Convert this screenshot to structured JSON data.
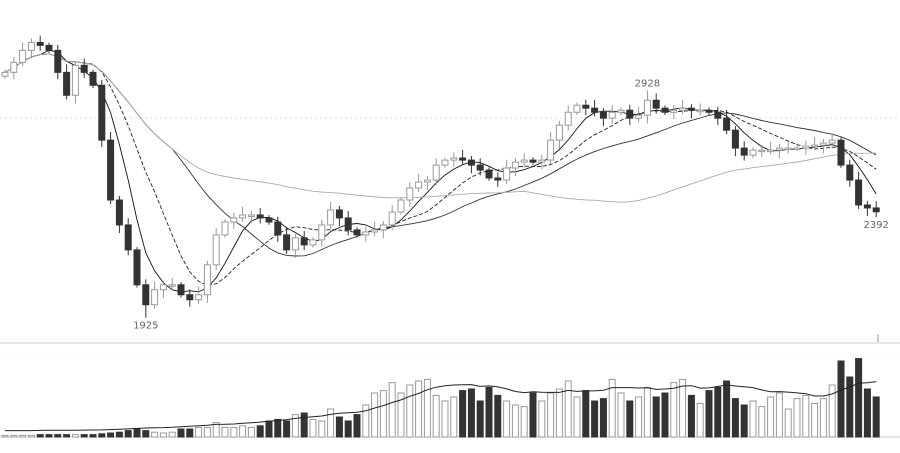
{
  "chart_data": {
    "type": "candlestick",
    "title": "",
    "xlabel": "",
    "ylabel": "",
    "ylim": [
      1800,
      3260
    ],
    "grid": false,
    "colors": {
      "up": "#999999",
      "down": "#333333",
      "ma": [
        "#111111",
        "#222222",
        "#333333",
        "#aaaaaa"
      ]
    },
    "moving_average_periods": [
      5,
      10,
      20,
      60
    ],
    "annotations": [
      {
        "index": 73,
        "text": "2928",
        "kind": "high"
      },
      {
        "index": 16,
        "text": "1925",
        "kind": "low"
      },
      {
        "index": 99,
        "text": "2392",
        "kind": "last"
      }
    ],
    "open": [
      2990,
      3007,
      3051,
      3104,
      3139,
      3126,
      3104,
      3007,
      2906,
      3038,
      3007,
      2950,
      2708,
      2444,
      2334,
      2224,
      2070,
      1982,
      2048,
      2070,
      2070,
      2026,
      2004,
      2026,
      2158,
      2290,
      2347,
      2365,
      2378,
      2378,
      2365,
      2347,
      2290,
      2224,
      2277,
      2246,
      2268,
      2334,
      2400,
      2365,
      2312,
      2290,
      2303,
      2312,
      2334,
      2391,
      2444,
      2497,
      2523,
      2532,
      2598,
      2620,
      2629,
      2620,
      2598,
      2576,
      2541,
      2532,
      2585,
      2611,
      2620,
      2611,
      2620,
      2708,
      2774,
      2831,
      2862,
      2849,
      2831,
      2805,
      2831,
      2840,
      2805,
      2818,
      2884,
      2849,
      2831,
      2840,
      2849,
      2840,
      2840,
      2831,
      2805,
      2752,
      2673,
      2642,
      2664,
      2664,
      2664,
      2673,
      2673,
      2673,
      2682,
      2686,
      2695,
      2708,
      2598,
      2532,
      2422,
      2409
    ],
    "close": [
      3007,
      3051,
      3104,
      3139,
      3126,
      3104,
      3007,
      2906,
      3038,
      3007,
      2950,
      2708,
      2444,
      2334,
      2224,
      2070,
      1982,
      2048,
      2070,
      2070,
      2026,
      2004,
      2026,
      2158,
      2290,
      2347,
      2365,
      2378,
      2378,
      2365,
      2347,
      2290,
      2224,
      2277,
      2246,
      2268,
      2334,
      2400,
      2365,
      2312,
      2290,
      2303,
      2312,
      2334,
      2391,
      2444,
      2497,
      2523,
      2532,
      2598,
      2620,
      2629,
      2620,
      2598,
      2576,
      2541,
      2532,
      2585,
      2611,
      2620,
      2611,
      2620,
      2708,
      2774,
      2831,
      2862,
      2849,
      2831,
      2805,
      2831,
      2840,
      2805,
      2818,
      2884,
      2849,
      2831,
      2840,
      2849,
      2840,
      2840,
      2831,
      2805,
      2752,
      2673,
      2642,
      2664,
      2664,
      2664,
      2673,
      2673,
      2673,
      2682,
      2686,
      2695,
      2708,
      2598,
      2532,
      2422,
      2409,
      2392
    ],
    "volume": [
      2,
      2,
      2,
      2,
      3,
      3,
      3,
      3,
      3,
      3,
      3,
      4,
      5,
      6,
      8,
      10,
      8,
      6,
      5,
      6,
      10,
      10,
      12,
      12,
      18,
      12,
      12,
      14,
      12,
      14,
      20,
      22,
      20,
      28,
      30,
      22,
      20,
      35,
      25,
      20,
      28,
      40,
      55,
      58,
      68,
      55,
      65,
      70,
      72,
      52,
      45,
      50,
      58,
      60,
      45,
      62,
      52,
      45,
      40,
      38,
      55,
      45,
      55,
      60,
      70,
      50,
      58,
      45,
      48,
      72,
      55,
      45,
      50,
      62,
      50,
      55,
      68,
      72,
      52,
      42,
      58,
      62,
      70,
      48,
      40,
      45,
      38,
      50,
      55,
      35,
      48,
      52,
      42,
      48,
      65,
      95,
      75,
      98,
      60,
      50
    ]
  }
}
